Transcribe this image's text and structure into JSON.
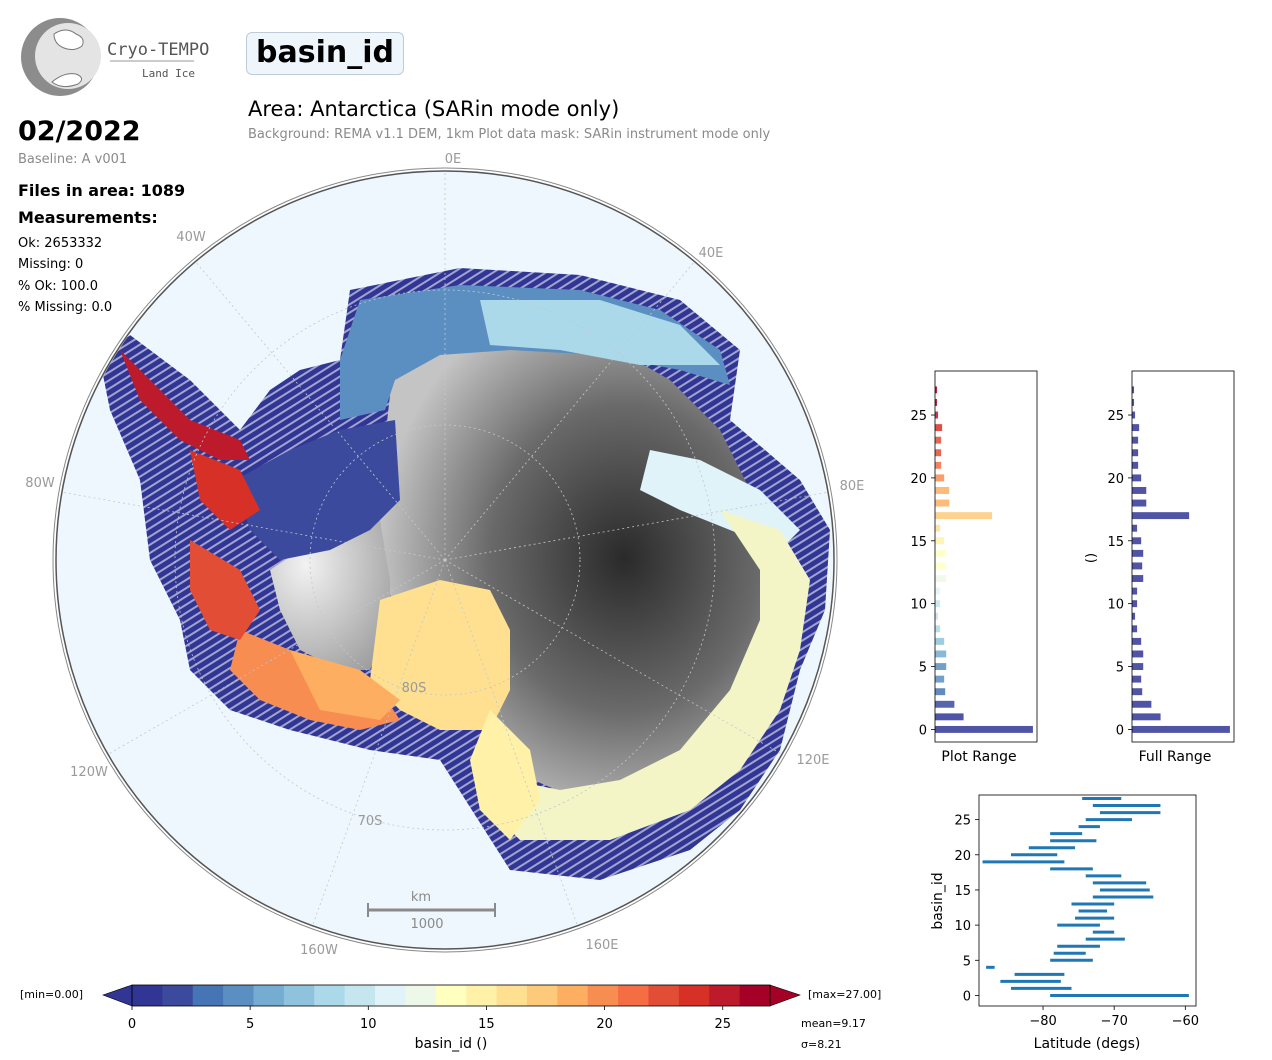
{
  "logo": {
    "name": "Cryo-TEMPO",
    "sub": "Land Ice"
  },
  "header": {
    "variable": "basin_id",
    "area_title": "Area: Antarctica (SARin mode only)",
    "subtitle": "Background: REMA v1.1 DEM, 1km   Plot data mask: SARin instrument mode only"
  },
  "info": {
    "date": "02/2022",
    "baseline": "Baseline: A v001",
    "files": "Files in area: 1089",
    "measurements_heading": "Measurements:",
    "ok": "Ok: 2653332",
    "missing": "Missing: 0",
    "pct_ok": "% Ok: 100.0",
    "pct_missing": "% Missing: 0.0"
  },
  "map": {
    "lon_labels": {
      "l0": "0E",
      "l40e": "40E",
      "l80e": "80E",
      "l120e": "120E",
      "l160e": "160E",
      "l160w": "160W",
      "l120w": "120W",
      "l80w": "80W",
      "l40w": "40W"
    },
    "lat_labels": {
      "l80s": "80S",
      "l70s": "70S"
    },
    "scale_unit": "km",
    "scale_value": "1000"
  },
  "colorbar": {
    "label": "basin_id ()",
    "min_label": "[min=0.00]",
    "max_label": "[max=27.00]",
    "mean": "mean=9.17",
    "sigma": "σ=8.21",
    "ticks": [
      "0",
      "5",
      "10",
      "15",
      "20",
      "25"
    ],
    "colors": [
      "#313695",
      "#3b4a9d",
      "#4575b4",
      "#5b8fc2",
      "#74add1",
      "#8fc3dd",
      "#abd9e9",
      "#c6e6ef",
      "#e0f3f8",
      "#eef8e8",
      "#ffffbf",
      "#fff1a8",
      "#fee090",
      "#fdc97a",
      "#fdae61",
      "#f88d51",
      "#f46d43",
      "#e24e35",
      "#d73027",
      "#bd1a2b",
      "#a50026"
    ]
  },
  "chart_data": [
    {
      "type": "bar",
      "orientation": "horizontal",
      "xlabel": "Plot Range",
      "categories": [
        0,
        1,
        2,
        3,
        4,
        5,
        6,
        7,
        8,
        9,
        10,
        11,
        12,
        13,
        14,
        15,
        16,
        17,
        18,
        19,
        20,
        21,
        22,
        23,
        24,
        25,
        26,
        27
      ],
      "values": [
        0.96,
        0.28,
        0.19,
        0.1,
        0.09,
        0.11,
        0.11,
        0.09,
        0.05,
        0.03,
        0.05,
        0.05,
        0.11,
        0.1,
        0.11,
        0.09,
        0.05,
        0.56,
        0.14,
        0.14,
        0.09,
        0.06,
        0.06,
        0.06,
        0.07,
        0.03,
        0.02,
        0.02
      ],
      "yticks": [
        "0",
        "5",
        "10",
        "15",
        "20",
        "25"
      ],
      "ylim": [
        -1,
        28.5
      ]
    },
    {
      "type": "bar",
      "orientation": "horizontal",
      "xlabel": "Full Range",
      "ylabel": "()",
      "categories": [
        0,
        1,
        2,
        3,
        4,
        5,
        6,
        7,
        8,
        9,
        10,
        11,
        12,
        13,
        14,
        15,
        16,
        17,
        18,
        19,
        20,
        21,
        22,
        23,
        24,
        25,
        26,
        27
      ],
      "values": [
        0.96,
        0.28,
        0.19,
        0.1,
        0.09,
        0.11,
        0.11,
        0.09,
        0.05,
        0.03,
        0.05,
        0.05,
        0.11,
        0.1,
        0.11,
        0.09,
        0.05,
        0.56,
        0.14,
        0.14,
        0.09,
        0.06,
        0.06,
        0.06,
        0.07,
        0.03,
        0.02,
        0.02
      ],
      "yticks": [
        "0",
        "5",
        "10",
        "15",
        "20",
        "25"
      ],
      "ylim": [
        -1,
        28.5
      ]
    },
    {
      "type": "range",
      "xlabel": "Latitude (degs)",
      "ylabel": "basin_id",
      "xticks": [
        "−80",
        "−70",
        "−60"
      ],
      "yticks": [
        "0",
        "5",
        "10",
        "15",
        "20",
        "25"
      ],
      "xlim": [
        -89,
        -58.5
      ],
      "ylim": [
        -1.5,
        28.5
      ],
      "ranges": [
        [
          -79,
          -59.5
        ],
        [
          -84.5,
          -76
        ],
        [
          -86,
          -77.5
        ],
        [
          -84,
          -77
        ],
        [
          -88,
          -86.8
        ],
        [
          -79,
          -73
        ],
        [
          -78.5,
          -74
        ],
        [
          -78,
          -72
        ],
        [
          -74,
          -68.5
        ],
        [
          -73,
          -70
        ],
        [
          -78,
          -72
        ],
        [
          -75.5,
          -70
        ],
        [
          -75,
          -71
        ],
        [
          -76,
          -70
        ],
        [
          -73,
          -64.5
        ],
        [
          -72,
          -65
        ],
        [
          -73,
          -65.5
        ],
        [
          -74,
          -69
        ],
        [
          -79,
          -73
        ],
        [
          -88.5,
          -77
        ],
        [
          -84.5,
          -78
        ],
        [
          -82,
          -75.5
        ],
        [
          -79,
          -72.5
        ],
        [
          -79,
          -74.5
        ],
        [
          -75,
          -72
        ],
        [
          -74,
          -67.5
        ],
        [
          -72,
          -63.5
        ],
        [
          -73,
          -63.5
        ],
        [
          -74.5,
          -69
        ]
      ]
    }
  ]
}
